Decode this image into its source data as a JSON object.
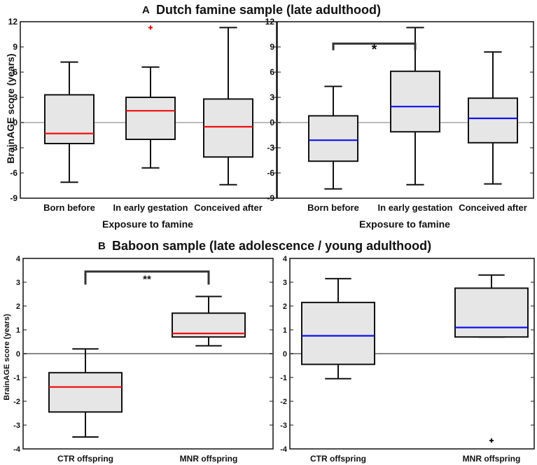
{
  "panel_a": {
    "letter": "A",
    "title": "Dutch famine sample (late adulthood)",
    "ylabel": "BrainAGE score (years)",
    "xlabel": "Exposure to famine"
  },
  "panel_b": {
    "letter": "B",
    "title": "Baboon sample (late adolescence / young adulthood)",
    "ylabel": "BrainAGE score (years)"
  },
  "colors": {
    "median_left": "#ee1111",
    "median_right": "#1111ee",
    "box_fill": "#e6e6e6",
    "outlier_left": "#ee1111",
    "outlier_right": "#111111",
    "zero_line": "#bbbbbb"
  },
  "chart_data": [
    {
      "id": "a-left",
      "type": "box",
      "categories": [
        "Born before",
        "In early gestation",
        "Conceived after"
      ],
      "ylim": [
        -9,
        12
      ],
      "yticks": [
        -9,
        -6,
        -3,
        0,
        3,
        6,
        9,
        12
      ],
      "ytick_labels": [
        "-9",
        "-6",
        "-3",
        "0",
        "3",
        "6",
        "9",
        "12"
      ],
      "boxes": [
        {
          "whisker_low": -7.1,
          "q1": -2.5,
          "median": -1.3,
          "q3": 3.3,
          "whisker_high": 7.2
        },
        {
          "whisker_low": -5.4,
          "q1": -2.0,
          "median": 1.4,
          "q3": 3.0,
          "whisker_high": 6.6,
          "outliers": [
            11.3
          ]
        },
        {
          "whisker_low": -7.4,
          "q1": -4.1,
          "median": -0.5,
          "q3": 2.8,
          "whisker_high": 11.3
        }
      ],
      "significance": []
    },
    {
      "id": "a-right",
      "type": "box",
      "categories": [
        "Born before",
        "In early gestation",
        "Conceived after"
      ],
      "ylim": [
        -9,
        12
      ],
      "yticks": [
        -9,
        -6,
        -3,
        0,
        3,
        6,
        9,
        12
      ],
      "ytick_labels": [
        "-9",
        "-6",
        "-3",
        "0",
        "3",
        "6",
        "9",
        "12"
      ],
      "boxes": [
        {
          "whisker_low": -7.9,
          "q1": -4.6,
          "median": -2.1,
          "q3": 0.8,
          "whisker_high": 4.3
        },
        {
          "whisker_low": -7.4,
          "q1": -1.1,
          "median": 1.9,
          "q3": 6.1,
          "whisker_high": 11.3
        },
        {
          "whisker_low": -7.3,
          "q1": -2.4,
          "median": 0.5,
          "q3": 2.9,
          "whisker_high": 8.4
        }
      ],
      "significance": [
        {
          "from": 0,
          "to": 1,
          "label": "*",
          "y": 9.4,
          "y_end": 8.6
        }
      ]
    },
    {
      "id": "b-left",
      "type": "box",
      "categories": [
        "CTR offspring",
        "MNR offspring"
      ],
      "ylim": [
        -4,
        4
      ],
      "yticks": [
        -4,
        -3,
        -2,
        -1,
        0,
        1,
        2,
        3,
        4
      ],
      "ytick_labels": [
        "-4",
        "-3",
        "-2",
        "-1",
        "0",
        "1",
        "2",
        "3",
        "4"
      ],
      "boxes": [
        {
          "whisker_low": -3.5,
          "q1": -2.45,
          "median": -1.4,
          "q3": -0.8,
          "whisker_high": 0.2
        },
        {
          "whisker_low": 0.33,
          "q1": 0.7,
          "median": 0.85,
          "q3": 1.7,
          "whisker_high": 2.4
        }
      ],
      "significance": [
        {
          "from": 0,
          "to": 1,
          "label": "**",
          "y": 3.45,
          "y_end": 2.9
        }
      ]
    },
    {
      "id": "b-right",
      "type": "box",
      "categories": [
        "CTR offspring",
        "MNR offspring"
      ],
      "ylim": [
        -4,
        4
      ],
      "yticks": [
        -4,
        -3,
        -2,
        -1,
        0,
        1,
        2,
        3,
        4
      ],
      "ytick_labels": [
        "-4",
        "-3",
        "-2",
        "-1",
        "0",
        "1",
        "2",
        "3",
        "4"
      ],
      "boxes": [
        {
          "whisker_low": -1.05,
          "q1": -0.45,
          "median": 0.75,
          "q3": 2.15,
          "whisker_high": 3.15
        },
        {
          "whisker_low": 0.7,
          "q1": 0.7,
          "median": 1.1,
          "q3": 2.75,
          "whisker_high": 3.3,
          "outliers": [
            -3.65
          ]
        }
      ],
      "significance": []
    }
  ]
}
